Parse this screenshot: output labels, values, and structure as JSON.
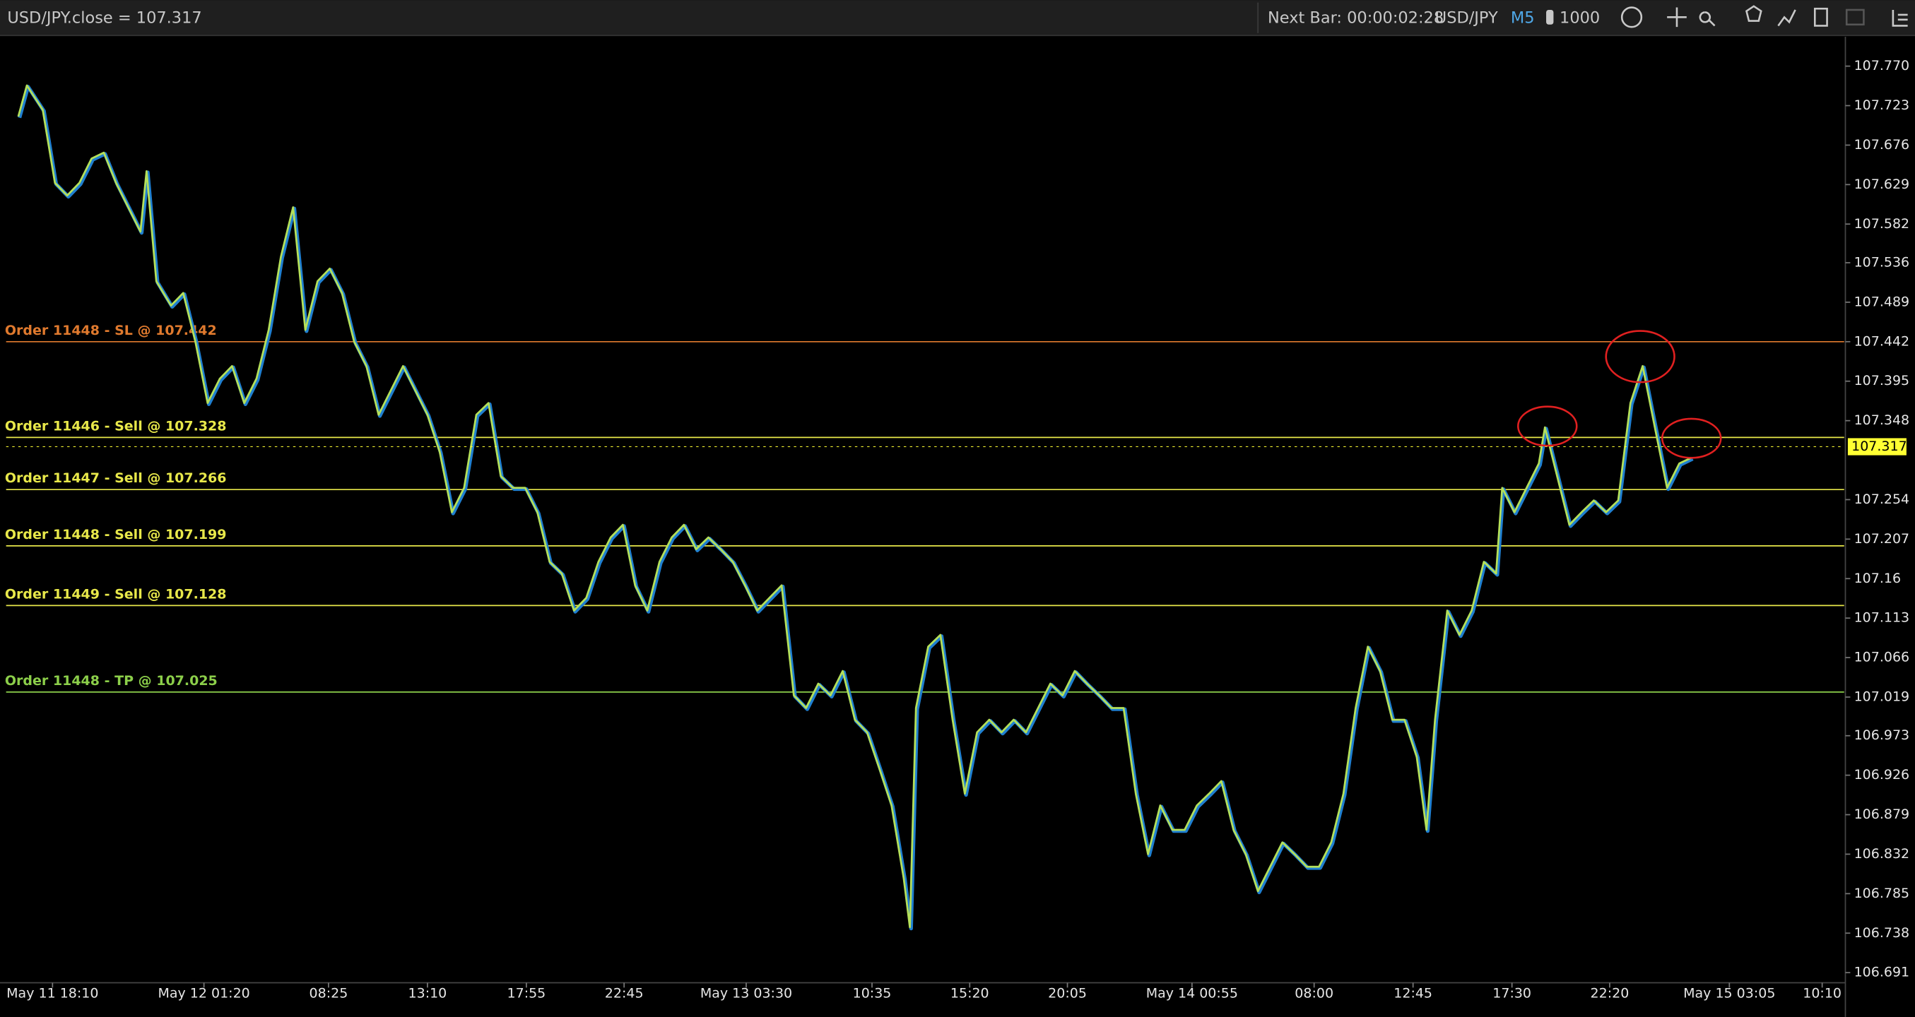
{
  "toolbar": {
    "title": "USD/JPY.close = 107.317",
    "next_bar": "Next Bar: 00:00:02:28",
    "symbol": "USD/JPY",
    "timeframe": "M5",
    "quantity": "1000"
  },
  "chart_data": {
    "type": "line",
    "xlim": [
      5,
      1510
    ],
    "ylim": [
      106.679,
      107.805
    ],
    "xticks": [
      {
        "value": 43,
        "label": "May 11 18:10"
      },
      {
        "value": 167,
        "label": "May 12 01:20"
      },
      {
        "value": 269,
        "label": "08:25"
      },
      {
        "value": 350,
        "label": "13:10"
      },
      {
        "value": 431,
        "label": "17:55"
      },
      {
        "value": 511,
        "label": "22:45"
      },
      {
        "value": 611,
        "label": "May 13 03:30"
      },
      {
        "value": 714,
        "label": "10:35"
      },
      {
        "value": 794,
        "label": "15:20"
      },
      {
        "value": 874,
        "label": "20:05"
      },
      {
        "value": 976,
        "label": "May 14 00:55"
      },
      {
        "value": 1076,
        "label": "08:00"
      },
      {
        "value": 1157,
        "label": "12:45"
      },
      {
        "value": 1238,
        "label": "17:30"
      },
      {
        "value": 1318,
        "label": "22:20"
      },
      {
        "value": 1416,
        "label": "May 15 03:05"
      },
      {
        "value": 1492,
        "label": "10:10"
      }
    ],
    "yticks": [
      {
        "value": 107.77,
        "label": "107.770"
      },
      107.723,
      107.676,
      107.629,
      107.582,
      107.536,
      107.489,
      107.442,
      107.395,
      107.348,
      107.254,
      107.207,
      107.16,
      107.113,
      107.066,
      107.019,
      106.973,
      106.926,
      106.879,
      106.832,
      106.785,
      106.738,
      106.691
    ],
    "last_price": 107.317,
    "last_price_color": "#ffff33",
    "order_lines": [
      {
        "label": "Order 11448 - SL @ 107.442",
        "value": 107.442,
        "color": "#e07a2e"
      },
      {
        "label": "Order 11446 - Sell @ 107.328",
        "value": 107.328,
        "color": "#e8e84a"
      },
      {
        "label": "Order 11447 - Sell @ 107.266",
        "value": 107.266,
        "color": "#e8e84a"
      },
      {
        "label": "Order 11448 - Sell @ 107.199",
        "value": 107.199,
        "color": "#e8e84a"
      },
      {
        "label": "Order 11449 - Sell @ 107.128",
        "value": 107.128,
        "color": "#e8e84a"
      },
      {
        "label": "Order 11448 - TP @ 107.025",
        "value": 107.025,
        "color": "#8ccf4a"
      }
    ],
    "series": [
      {
        "color": "#b5e05a",
        "x": [
          15,
          22,
          35,
          45,
          55,
          65,
          75,
          85,
          95,
          105,
          115,
          120,
          128,
          140,
          150,
          160,
          170,
          180,
          190,
          200,
          210,
          220,
          230,
          240,
          250,
          260,
          270,
          280,
          290,
          300,
          310,
          320,
          330,
          340,
          350,
          360,
          370,
          380,
          390,
          400,
          410,
          420,
          430,
          440,
          450,
          460,
          470,
          480,
          490,
          500,
          510,
          520,
          530,
          540,
          550,
          560,
          570,
          580,
          590,
          600,
          610,
          620,
          630,
          640,
          650,
          660,
          670,
          680,
          690,
          700,
          710,
          720,
          730,
          740,
          745,
          750,
          760,
          770,
          780,
          790,
          800,
          810,
          820,
          830,
          840,
          850,
          860,
          870,
          880,
          890,
          900,
          910,
          920,
          930,
          940,
          950,
          960,
          970,
          980,
          990,
          1000,
          1010,
          1020,
          1030,
          1040,
          1050,
          1060,
          1070,
          1080,
          1090,
          1100,
          1110,
          1120,
          1130,
          1140,
          1150,
          1160,
          1168,
          1175,
          1185,
          1195,
          1205,
          1215,
          1225,
          1230,
          1240,
          1250,
          1260,
          1265,
          1275,
          1285,
          1295,
          1305,
          1315,
          1325,
          1335,
          1345,
          1355,
          1365,
          1375,
          1385
        ],
        "values": [
          107.71,
          107.747,
          107.718,
          107.631,
          107.616,
          107.631,
          107.66,
          107.667,
          107.631,
          107.602,
          107.573,
          107.645,
          107.514,
          107.485,
          107.5,
          107.442,
          107.369,
          107.398,
          107.413,
          107.369,
          107.398,
          107.456,
          107.543,
          107.602,
          107.456,
          107.514,
          107.529,
          107.5,
          107.442,
          107.413,
          107.355,
          107.384,
          107.413,
          107.384,
          107.355,
          107.311,
          107.239,
          107.268,
          107.355,
          107.369,
          107.282,
          107.268,
          107.268,
          107.239,
          107.18,
          107.166,
          107.122,
          107.137,
          107.18,
          107.209,
          107.224,
          107.152,
          107.122,
          107.18,
          107.209,
          107.224,
          107.195,
          107.209,
          107.195,
          107.18,
          107.152,
          107.122,
          107.137,
          107.152,
          107.021,
          107.006,
          107.035,
          107.021,
          107.05,
          106.992,
          106.977,
          106.934,
          106.89,
          106.803,
          106.745,
          107.006,
          107.079,
          107.093,
          106.992,
          106.904,
          106.977,
          106.992,
          106.977,
          106.992,
          106.977,
          107.006,
          107.035,
          107.021,
          107.05,
          107.035,
          107.021,
          107.006,
          107.006,
          106.904,
          106.832,
          106.89,
          106.861,
          106.861,
          106.89,
          106.904,
          106.919,
          106.861,
          106.832,
          106.788,
          106.817,
          106.846,
          106.832,
          106.817,
          106.817,
          106.846,
          106.904,
          107.006,
          107.079,
          107.05,
          106.992,
          106.992,
          106.948,
          106.861,
          106.992,
          107.122,
          107.093,
          107.122,
          107.18,
          107.166,
          107.268,
          107.239,
          107.268,
          107.297,
          107.34,
          107.282,
          107.224,
          107.239,
          107.253,
          107.239,
          107.253,
          107.369,
          107.413,
          107.34,
          107.268,
          107.297,
          107.304
        ]
      }
    ]
  }
}
